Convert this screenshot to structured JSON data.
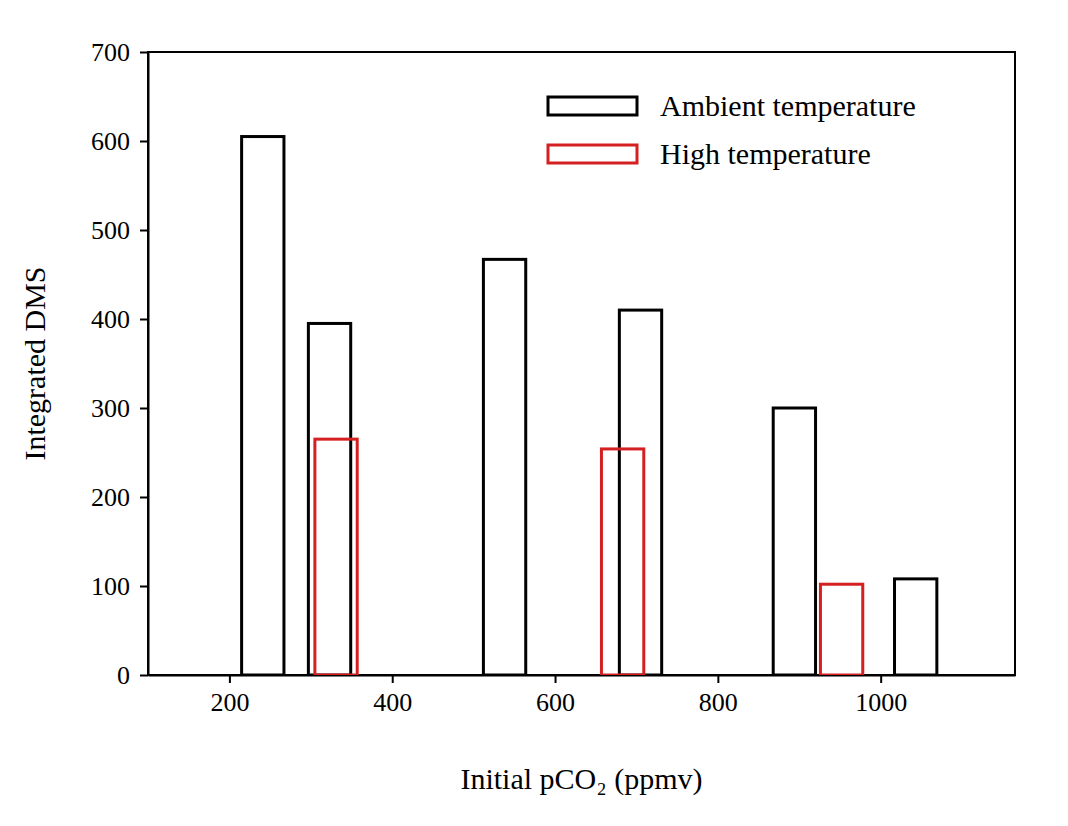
{
  "chart_data": {
    "type": "bar",
    "xlabel": "Initial pCO₂ (ppmv)",
    "ylabel": "Integrated DMS",
    "series": [
      {
        "name": "Ambient temperature",
        "color": "#000000",
        "x": [
          241,
          323,
          538,
          705,
          894,
          1043
        ],
        "values": [
          605,
          395,
          467,
          410,
          300,
          108
        ]
      },
      {
        "name": "High temperature",
        "color": "#d42020",
        "x": [
          331,
          683,
          952
        ],
        "values": [
          265,
          254,
          102
        ]
      }
    ],
    "xlim": [
      100,
      1165
    ],
    "xticks": [
      200,
      400,
      600,
      800,
      1000
    ],
    "ylim": [
      0,
      700
    ],
    "yticks": [
      0,
      100,
      200,
      300,
      400,
      500,
      600,
      700
    ],
    "grid": false,
    "legend": "upper right"
  }
}
